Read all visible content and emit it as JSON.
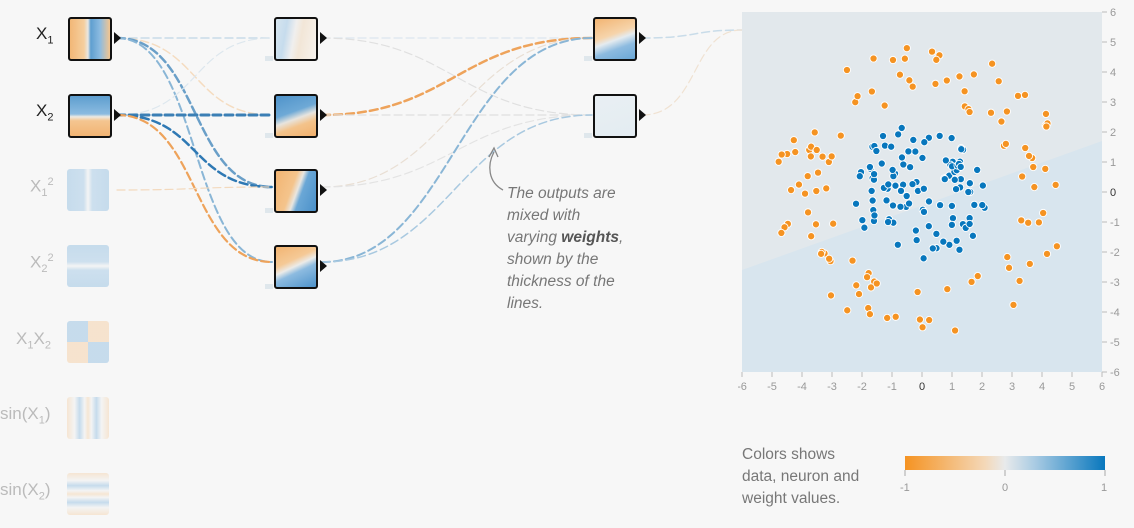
{
  "colors": {
    "orange": "#f59322",
    "blue": "#0877bd",
    "neutral": "#e8eaeb",
    "bg": "#f7f7f7"
  },
  "inputs": [
    {
      "base": "X",
      "sub": "1",
      "sup": "",
      "active": true
    },
    {
      "base": "X",
      "sub": "2",
      "sup": "",
      "active": true
    },
    {
      "base": "X",
      "sub": "1",
      "sup": "2",
      "active": false
    },
    {
      "base": "X",
      "sub": "2",
      "sup": "2",
      "active": false
    },
    {
      "base": "X",
      "sub": "1",
      "sup": "",
      "base2": "X",
      "sub2": "2",
      "active": false
    },
    {
      "base": "sin(X",
      "sub": "1",
      "sup": "",
      ")": true,
      "close": ")",
      "active": false
    },
    {
      "base": "sin(X",
      "sub": "2",
      "sup": "",
      "close": ")",
      "active": false
    }
  ],
  "annotation": {
    "line1": "The outputs are",
    "line2": "mixed with",
    "line3_pre": "varying ",
    "line3_bold": "weights",
    "line3_post": ",",
    "line4": "shown by the",
    "line5": "thickness of the",
    "line6": "lines."
  },
  "legend": {
    "line1": "Colors shows",
    "line2": "data, neuron and",
    "line3": "weight values.",
    "min": "-1",
    "mid": "0",
    "max": "1"
  },
  "plot": {
    "x_ticks": [
      "-6",
      "-5",
      "-4",
      "-3",
      "-2",
      "-1",
      "0",
      "1",
      "2",
      "3",
      "4",
      "5",
      "6"
    ],
    "y_ticks": [
      "6",
      "5",
      "4",
      "3",
      "2",
      "1",
      "0",
      "-1",
      "-2",
      "-3",
      "-4",
      "-5",
      "-6"
    ],
    "xlim": [
      -6,
      6
    ],
    "ylim": [
      -6,
      6
    ]
  },
  "chart_data": {
    "type": "scatter",
    "xlim": [
      -6,
      6
    ],
    "ylim": [
      -6,
      6
    ],
    "series": [
      {
        "color": "blue",
        "distribution": "inner cluster radius < 2",
        "count": 100
      },
      {
        "color": "orange",
        "distribution": "outer ring radius 3-5",
        "count": 100
      }
    ]
  }
}
